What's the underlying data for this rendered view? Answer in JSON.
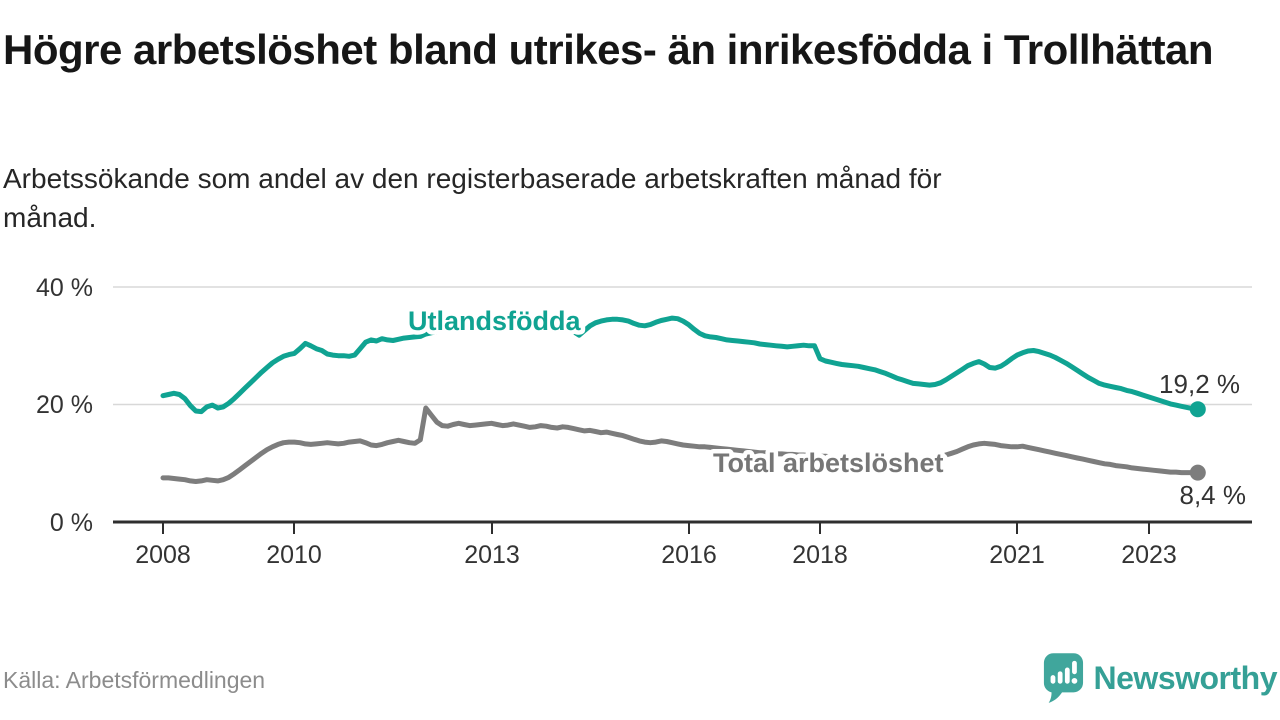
{
  "header": {
    "title": "Högre arbetslöshet bland utrikes- än inrikesfödda i Trollhättan",
    "subtitle": "Arbetssökande som andel av den registerbaserade arbetskraften månad för månad."
  },
  "footer": {
    "source": "Källa: Arbetsförmedlingen",
    "brand": "Newsworthy",
    "brand_color": "#35a096",
    "logo_icon": "speech-bubble-bar-chart"
  },
  "chart_data": {
    "type": "line",
    "title": "Högre arbetslöshet bland utrikes- än inrikesfödda i Trollhättan",
    "subtitle": "Arbetssökande som andel av den registerbaserade arbetskraften månad för månad.",
    "unit": "%",
    "frequency": "monthly",
    "x_start_year": 2008,
    "x_ticks": [
      "2008",
      "2010",
      "2013",
      "2016",
      "2018",
      "2021",
      "2023"
    ],
    "y_ticks": [
      "40 %",
      "20 %",
      "0 %"
    ],
    "ylim": [
      0,
      44
    ],
    "grid": "horizontal",
    "legend": "inline-labels",
    "colors": {
      "grid": "#d8d8d8",
      "axis": "#2e2e2e",
      "text": "#333333"
    },
    "series": [
      {
        "name": "Total arbetslöshet",
        "color": "#7d7d7d",
        "label_color": "#767676",
        "end_label": "8,4 %",
        "end_value": 8.4,
        "values": [
          7.5,
          7.5,
          7.4,
          7.3,
          7.2,
          7.0,
          6.9,
          7.0,
          7.2,
          7.1,
          7.0,
          7.2,
          7.6,
          8.2,
          8.9,
          9.6,
          10.3,
          11.0,
          11.7,
          12.3,
          12.8,
          13.2,
          13.5,
          13.6,
          13.6,
          13.5,
          13.3,
          13.2,
          13.3,
          13.4,
          13.5,
          13.4,
          13.3,
          13.4,
          13.6,
          13.7,
          13.8,
          13.5,
          13.1,
          13.0,
          13.2,
          13.5,
          13.7,
          13.9,
          13.7,
          13.5,
          13.4,
          14.0,
          19.4,
          18.2,
          17.0,
          16.4,
          16.3,
          16.6,
          16.8,
          16.6,
          16.4,
          16.5,
          16.6,
          16.7,
          16.8,
          16.6,
          16.4,
          16.5,
          16.7,
          16.5,
          16.3,
          16.1,
          16.2,
          16.4,
          16.3,
          16.1,
          16.0,
          16.2,
          16.1,
          15.9,
          15.7,
          15.5,
          15.6,
          15.4,
          15.2,
          15.3,
          15.1,
          14.9,
          14.7,
          14.4,
          14.1,
          13.8,
          13.6,
          13.5,
          13.6,
          13.8,
          13.7,
          13.5,
          13.3,
          13.1,
          13.0,
          12.9,
          12.8,
          12.8,
          12.7,
          12.6,
          12.5,
          12.4,
          12.3,
          12.2,
          12.1,
          12.0,
          11.9,
          11.8,
          11.8,
          11.7,
          11.6,
          11.6,
          11.5,
          11.5,
          11.4,
          11.4,
          11.3,
          11.3,
          11.2,
          11.2,
          11.1,
          11.1,
          11.0,
          11.0,
          10.9,
          10.9,
          10.8,
          10.8,
          10.7,
          10.7,
          10.7,
          10.6,
          10.6,
          10.7,
          10.7,
          10.8,
          10.8,
          10.9,
          11.0,
          11.1,
          11.2,
          11.4,
          11.7,
          12.0,
          12.4,
          12.8,
          13.1,
          13.3,
          13.4,
          13.3,
          13.2,
          13.0,
          12.9,
          12.8,
          12.8,
          12.9,
          12.7,
          12.5,
          12.3,
          12.1,
          11.9,
          11.7,
          11.5,
          11.3,
          11.1,
          10.9,
          10.7,
          10.5,
          10.3,
          10.1,
          9.9,
          9.8,
          9.6,
          9.5,
          9.4,
          9.2,
          9.1,
          9.0,
          8.9,
          8.8,
          8.7,
          8.6,
          8.5,
          8.5,
          8.4,
          8.4,
          8.4,
          8.4
        ]
      },
      {
        "name": "Utlandsfödda",
        "color": "#10a392",
        "label_color": "#10a392",
        "end_label": "19,2 %",
        "end_value": 19.2,
        "values": [
          21.5,
          21.7,
          21.9,
          21.7,
          21.0,
          19.8,
          18.9,
          18.8,
          19.6,
          19.9,
          19.4,
          19.6,
          20.2,
          21.0,
          21.9,
          22.8,
          23.7,
          24.6,
          25.5,
          26.3,
          27.1,
          27.7,
          28.2,
          28.5,
          28.7,
          29.5,
          30.4,
          30.0,
          29.5,
          29.2,
          28.6,
          28.4,
          28.3,
          28.3,
          28.2,
          28.4,
          29.5,
          30.6,
          31.0,
          30.8,
          31.2,
          31.0,
          30.9,
          31.1,
          31.3,
          31.4,
          31.5,
          31.6,
          32.0,
          32.2,
          32.4,
          32.6,
          32.8,
          32.9,
          33.0,
          33.1,
          33.2,
          33.2,
          33.3,
          33.4,
          33.4,
          33.5,
          33.5,
          33.6,
          33.6,
          33.7,
          33.7,
          33.8,
          33.8,
          33.9,
          33.9,
          34.0,
          34.0,
          34.1,
          33.6,
          32.4,
          31.8,
          32.6,
          33.4,
          33.9,
          34.2,
          34.4,
          34.5,
          34.5,
          34.4,
          34.2,
          33.8,
          33.5,
          33.4,
          33.6,
          34.0,
          34.3,
          34.5,
          34.7,
          34.6,
          34.2,
          33.6,
          32.8,
          32.1,
          31.7,
          31.5,
          31.4,
          31.2,
          31.0,
          30.9,
          30.8,
          30.7,
          30.6,
          30.5,
          30.3,
          30.2,
          30.1,
          30.0,
          29.9,
          29.8,
          29.9,
          30.0,
          30.1,
          30.0,
          30.0,
          27.8,
          27.4,
          27.2,
          27.0,
          26.8,
          26.7,
          26.6,
          26.5,
          26.3,
          26.1,
          25.9,
          25.6,
          25.3,
          24.9,
          24.5,
          24.2,
          23.9,
          23.6,
          23.5,
          23.4,
          23.3,
          23.4,
          23.7,
          24.2,
          24.8,
          25.4,
          26.0,
          26.6,
          27.0,
          27.3,
          26.9,
          26.3,
          26.2,
          26.5,
          27.1,
          27.8,
          28.4,
          28.8,
          29.1,
          29.2,
          29.0,
          28.7,
          28.4,
          28.0,
          27.5,
          27.0,
          26.4,
          25.8,
          25.2,
          24.6,
          24.1,
          23.6,
          23.3,
          23.1,
          22.9,
          22.7,
          22.4,
          22.2,
          21.9,
          21.6,
          21.3,
          21.0,
          20.7,
          20.4,
          20.1,
          19.9,
          19.7,
          19.5,
          19.3,
          19.2
        ]
      }
    ]
  }
}
